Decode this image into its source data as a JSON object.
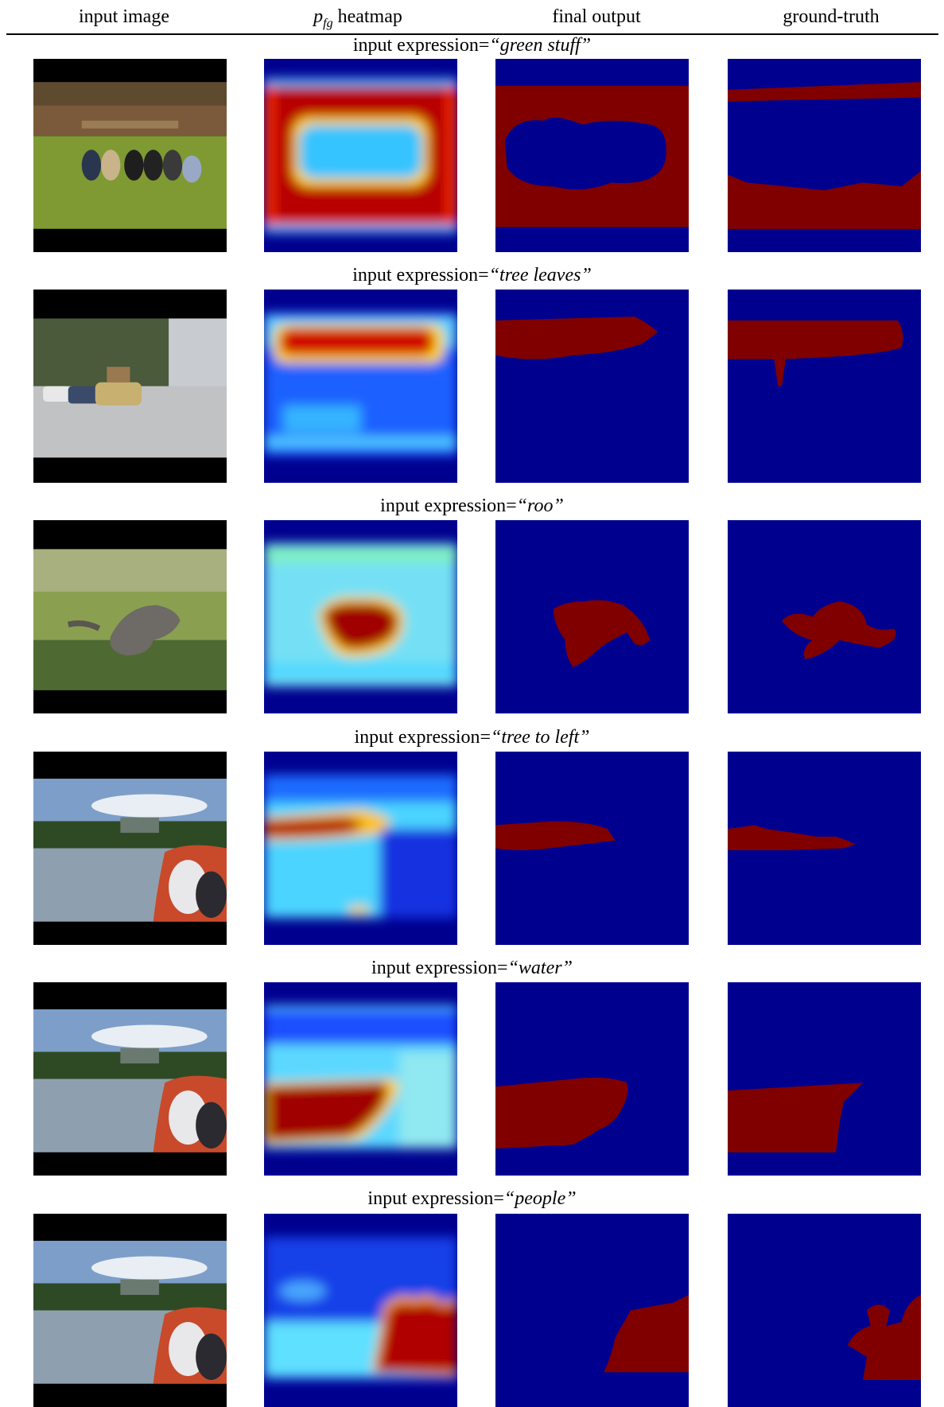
{
  "columns": {
    "input_image": "input image",
    "heatmap_var": "p",
    "heatmap_sub": "fg",
    "heatmap_suffix": " heatmap",
    "final_output": "final output",
    "ground_truth": "ground-truth"
  },
  "caption_prefix": "input expression=",
  "rows": [
    {
      "expression": "“green stuff”"
    },
    {
      "expression": "“tree leaves”"
    },
    {
      "expression": "“roo”"
    },
    {
      "expression": "“tree to left”"
    },
    {
      "expression": "“water”"
    },
    {
      "expression": "“people”"
    }
  ],
  "colors": {
    "mask_background": "#00008f",
    "mask_foreground": "#800000",
    "letterbox": "#000000"
  }
}
